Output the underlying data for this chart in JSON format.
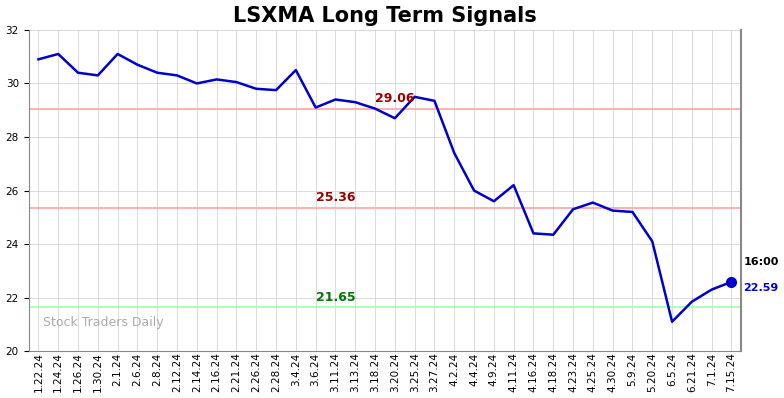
{
  "title": "LSXMA Long Term Signals",
  "x_labels": [
    "1.22.24",
    "1.24.24",
    "1.26.24",
    "1.30.24",
    "2.1.24",
    "2.6.24",
    "2.8.24",
    "2.12.24",
    "2.14.24",
    "2.16.24",
    "2.21.24",
    "2.26.24",
    "2.28.24",
    "3.4.24",
    "3.6.24",
    "3.11.24",
    "3.13.24",
    "3.18.24",
    "3.20.24",
    "3.25.24",
    "3.27.24",
    "4.2.24",
    "4.4.24",
    "4.9.24",
    "4.11.24",
    "4.16.24",
    "4.18.24",
    "4.23.24",
    "4.25.24",
    "4.30.24",
    "5.9.24",
    "5.20.24",
    "6.5.24",
    "6.21.24",
    "7.1.24",
    "7.15.24"
  ],
  "y_values": [
    30.9,
    31.1,
    30.4,
    30.3,
    31.1,
    30.7,
    30.4,
    30.3,
    30.0,
    30.15,
    30.05,
    29.8,
    29.75,
    30.5,
    29.1,
    29.4,
    29.3,
    29.06,
    28.7,
    29.5,
    29.35,
    27.4,
    26.0,
    25.6,
    26.2,
    24.4,
    24.35,
    25.3,
    25.55,
    25.25,
    25.2,
    24.1,
    21.1,
    21.85,
    22.3,
    22.59
  ],
  "line_color": "#0000cc",
  "line_width": 1.8,
  "hline_red1": 29.06,
  "hline_red2": 25.36,
  "hline_green": 21.65,
  "hline_red_color": "#ffaaaa",
  "hline_green_color": "#aaffaa",
  "ann29_xi": 17,
  "ann29_text": "29.06",
  "ann29_color": "#990000",
  "ann25_xi": 14,
  "ann25_text": "25.36",
  "ann25_color": "#990000",
  "ann21_xi": 14,
  "ann21_text": "21.65",
  "ann21_color": "#007700",
  "last_dot_color": "#0000cc",
  "last_dot_size": 7,
  "time_label": "16:00",
  "price_label": "22.59",
  "time_color": "#000000",
  "price_color": "#0000cc",
  "ylim": [
    20,
    32
  ],
  "yticks": [
    20,
    22,
    24,
    26,
    28,
    30,
    32
  ],
  "watermark": "Stock Traders Daily",
  "watermark_color": "#aaaaaa",
  "bg_color": "#ffffff",
  "grid_color": "#cccccc",
  "title_fontsize": 15,
  "tick_fontsize": 7.5
}
